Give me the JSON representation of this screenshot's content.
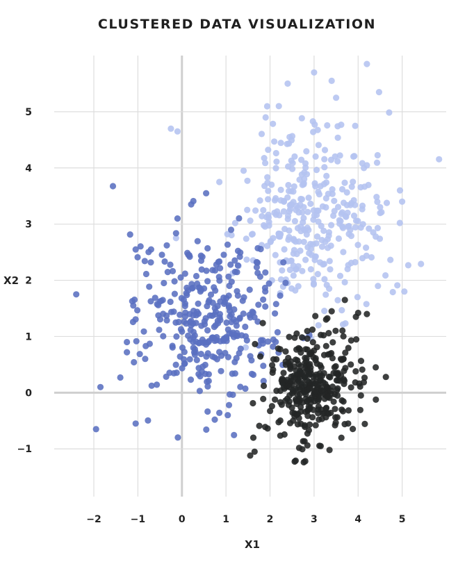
{
  "chart_data": {
    "type": "scatter",
    "title": "CLUSTERED DATA VISUALIZATION",
    "xlabel": "X1",
    "ylabel": "X2",
    "xlim": [
      -2.9,
      6.0
    ],
    "ylim": [
      -1.85,
      6.0
    ],
    "xticks": [
      -2,
      -1,
      0,
      1,
      2,
      3,
      4,
      5
    ],
    "yticks": [
      -1,
      0,
      1,
      2,
      3,
      4,
      5
    ],
    "xtick_labels": [
      "−2",
      "−1",
      "0",
      "1",
      "2",
      "3",
      "4",
      "5"
    ],
    "ytick_labels": [
      "−1",
      "0",
      "1",
      "2",
      "3",
      "4",
      "5"
    ],
    "grid": true,
    "legend": "none",
    "colors": {
      "light": "#b4c3f0",
      "mid": "#5a6fc0",
      "dark": "#232526",
      "grid": "#dddddd",
      "zero": "#cfcfcf"
    },
    "series": [
      {
        "color": "#b4c3f0",
        "center": [
          3.0,
          3.1
        ],
        "spread": [
          0.8,
          0.85
        ],
        "count": 330,
        "points": [
          [
            -0.25,
            4.7
          ],
          [
            -0.1,
            4.65
          ],
          [
            3.0,
            5.7
          ],
          [
            3.4,
            5.55
          ],
          [
            4.2,
            5.85
          ],
          [
            2.4,
            5.5
          ],
          [
            3.5,
            5.25
          ],
          [
            1.9,
            4.9
          ],
          [
            2.2,
            5.1
          ],
          [
            4.95,
            3.6
          ],
          [
            5.0,
            3.4
          ],
          [
            5.05,
            1.8
          ],
          [
            1.4,
            3.95
          ],
          [
            0.85,
            3.75
          ],
          [
            4.45,
            1.9
          ],
          [
            4.5,
            3.3
          ]
        ]
      },
      {
        "color": "#5a6fc0",
        "center": [
          0.65,
          1.3
        ],
        "spread": [
          0.75,
          0.75
        ],
        "count": 330,
        "points": [
          [
            -2.4,
            1.75
          ],
          [
            -1.95,
            -0.65
          ],
          [
            -1.85,
            0.1
          ],
          [
            -1.05,
            -0.55
          ],
          [
            0.55,
            3.55
          ],
          [
            -0.1,
            3.1
          ],
          [
            -1.05,
            2.55
          ],
          [
            -0.7,
            2.55
          ],
          [
            -1.25,
            0.9
          ],
          [
            -1.25,
            0.72
          ],
          [
            -1.4,
            0.27
          ]
        ]
      },
      {
        "color": "#232526",
        "center": [
          2.95,
          0.15
        ],
        "spread": [
          0.5,
          0.48
        ],
        "count": 350,
        "points": [
          [
            1.55,
            -1.12
          ],
          [
            1.65,
            -1.05
          ],
          [
            2.8,
            -1.22
          ],
          [
            3.15,
            -0.95
          ],
          [
            3.35,
            -1.02
          ],
          [
            4.4,
            0.45
          ],
          [
            4.2,
            1.4
          ],
          [
            4.0,
            1.42
          ],
          [
            3.95,
            1.35
          ],
          [
            3.7,
            1.65
          ],
          [
            3.4,
            1.45
          ]
        ]
      }
    ]
  }
}
